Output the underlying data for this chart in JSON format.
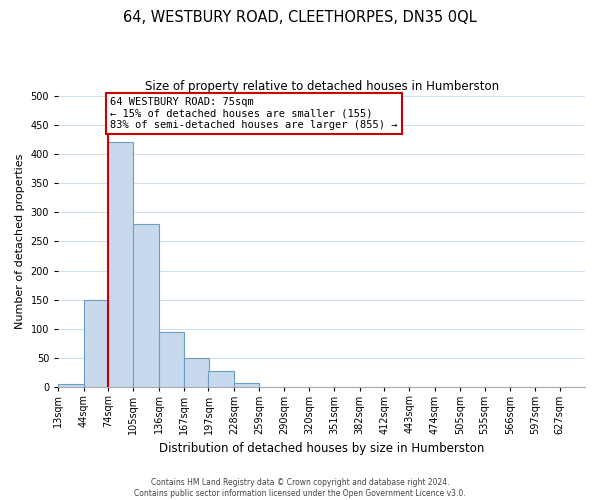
{
  "title": "64, WESTBURY ROAD, CLEETHORPES, DN35 0QL",
  "subtitle": "Size of property relative to detached houses in Humberston",
  "xlabel": "Distribution of detached houses by size in Humberston",
  "ylabel": "Number of detached properties",
  "bar_labels": [
    "13sqm",
    "44sqm",
    "74sqm",
    "105sqm",
    "136sqm",
    "167sqm",
    "197sqm",
    "228sqm",
    "259sqm",
    "290sqm",
    "320sqm",
    "351sqm",
    "382sqm",
    "412sqm",
    "443sqm",
    "474sqm",
    "505sqm",
    "535sqm",
    "566sqm",
    "597sqm",
    "627sqm"
  ],
  "bar_values": [
    5,
    150,
    420,
    280,
    95,
    50,
    28,
    8,
    1,
    0,
    0,
    0,
    0,
    0,
    0,
    0,
    0,
    0,
    0,
    0,
    0
  ],
  "bar_color": "#c8d9ee",
  "bar_edge_color": "#6a9ec5",
  "reference_line_color": "#cc0000",
  "ylim": [
    0,
    500
  ],
  "yticks": [
    0,
    50,
    100,
    150,
    200,
    250,
    300,
    350,
    400,
    450,
    500
  ],
  "annotation_title": "64 WESTBURY ROAD: 75sqm",
  "annotation_line1": "← 15% of detached houses are smaller (155)",
  "annotation_line2": "83% of semi-detached houses are larger (855) →",
  "annotation_box_color": "#ffffff",
  "annotation_box_edge": "#cc0000",
  "footer_line1": "Contains HM Land Registry data © Crown copyright and database right 2024.",
  "footer_line2": "Contains public sector information licensed under the Open Government Licence v3.0.",
  "title_fontsize": 10.5,
  "subtitle_fontsize": 8.5,
  "xlabel_fontsize": 8.5,
  "ylabel_fontsize": 8,
  "tick_fontsize": 7,
  "annotation_fontsize": 7.5,
  "footer_fontsize": 5.5,
  "grid_color": "#ccddee",
  "background_color": "#ffffff",
  "bin_width": 31
}
